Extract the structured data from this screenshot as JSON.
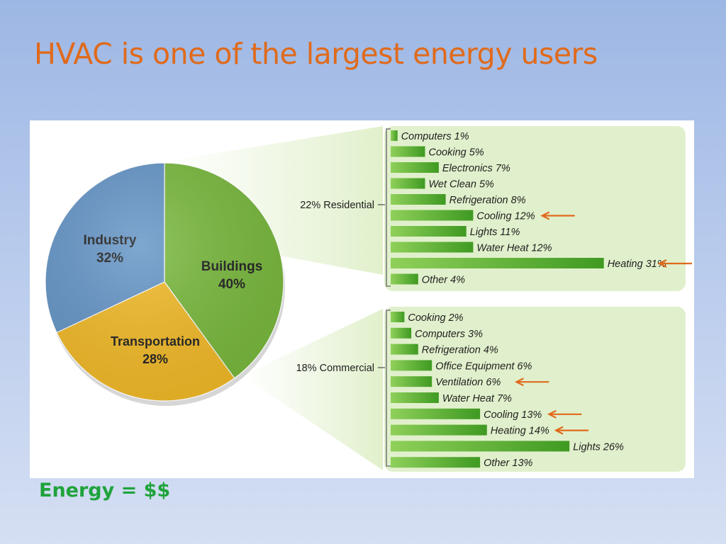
{
  "slide": {
    "title": "HVAC is one of the largest energy users",
    "footer": "Energy = $$"
  },
  "colors": {
    "title": "#e06a1b",
    "footer": "#1fa33b",
    "arrow": "#e06a1b",
    "panel_fill": "#e1f0cc",
    "bar_light": "#8fd05a",
    "bar_dark": "#3f9a22"
  },
  "chart_data": [
    {
      "type": "pie",
      "slices": [
        {
          "label": "Buildings",
          "value": 40,
          "value_label": "40%",
          "color": "#78b83c"
        },
        {
          "label": "Transportation",
          "value": 28,
          "value_label": "28%",
          "color": "#f1b926"
        },
        {
          "label": "Industry",
          "value": 32,
          "value_label": "32%",
          "color": "#6394c6"
        }
      ]
    },
    {
      "type": "bar",
      "orientation": "horizontal",
      "group_label": "22% Residential",
      "categories": [
        "Computers",
        "Cooking",
        "Electronics",
        "Wet Clean",
        "Refrigeration",
        "Cooling",
        "Lights",
        "Water Heat",
        "Heating",
        "Other"
      ],
      "values": [
        1,
        5,
        7,
        5,
        8,
        12,
        11,
        12,
        31,
        4
      ],
      "labels": [
        "Computers 1%",
        "Cooking 5%",
        "Electronics 7%",
        "Wet Clean 5%",
        "Refrigeration 8%",
        "Cooling 12%",
        "Lights 11%",
        "Water Heat 12%",
        "Heating 31%",
        "Other 4%"
      ],
      "highlighted": [
        "Cooling",
        "Heating"
      ],
      "unit": "%"
    },
    {
      "type": "bar",
      "orientation": "horizontal",
      "group_label": "18% Commercial",
      "categories": [
        "Cooking",
        "Computers",
        "Refrigeration",
        "Office Equipment",
        "Ventilation",
        "Water Heat",
        "Cooling",
        "Heating",
        "Lights",
        "Other"
      ],
      "values": [
        2,
        3,
        4,
        6,
        6,
        7,
        13,
        14,
        26,
        13
      ],
      "labels": [
        "Cooking 2%",
        "Computers 3%",
        "Refrigeration 4%",
        "Office Equipment 6%",
        "Ventilation 6%",
        "Water Heat 7%",
        "Cooling 13%",
        "Heating 14%",
        "Lights 26%",
        "Other 13%"
      ],
      "highlighted": [
        "Ventilation",
        "Cooling",
        "Heating"
      ],
      "unit": "%"
    }
  ]
}
